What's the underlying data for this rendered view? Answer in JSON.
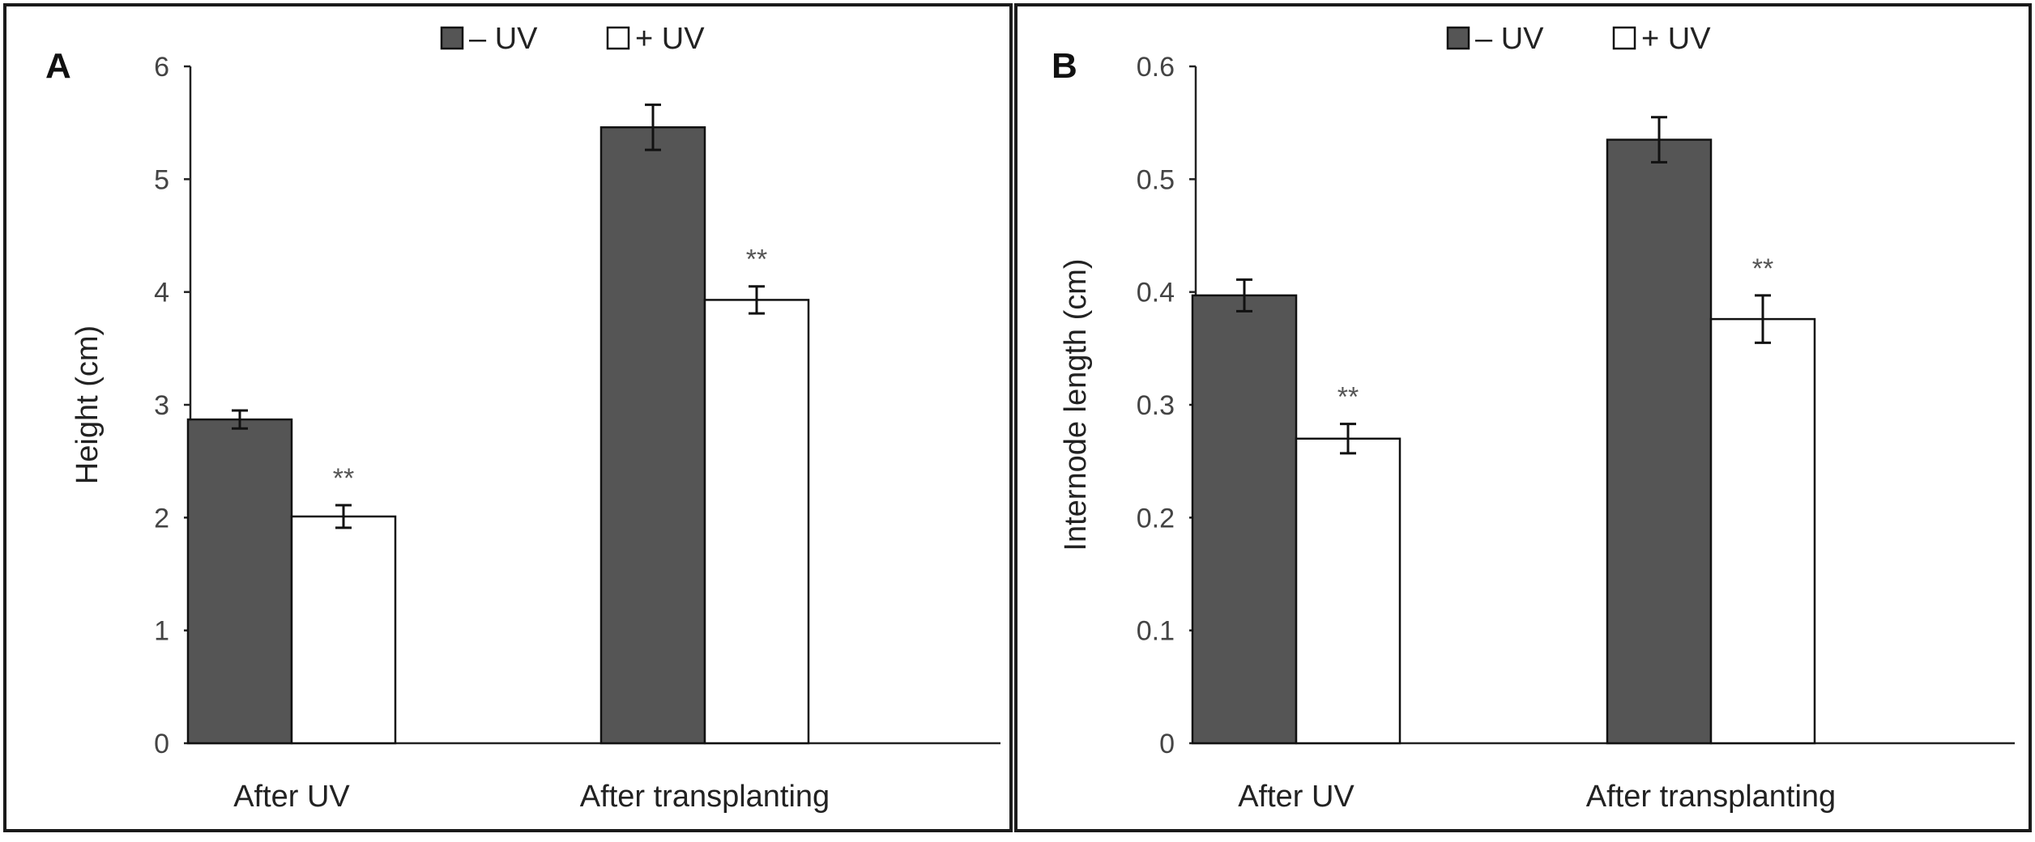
{
  "chart_data": [
    {
      "type": "bar",
      "panel_label": "A",
      "title": "",
      "xlabel": "",
      "ylabel": "Height (cm)",
      "ylim": [
        0,
        6
      ],
      "yticks": [
        0,
        1,
        2,
        3,
        4,
        5,
        6
      ],
      "grid": false,
      "legend_position": "top-center",
      "categories": [
        "After UV",
        "After transplanting"
      ],
      "series": [
        {
          "name": "– UV",
          "color": "#555555",
          "values": [
            2.87,
            5.46
          ],
          "errors": [
            0.08,
            0.2
          ]
        },
        {
          "name": "+ UV",
          "color": "#ffffff",
          "values": [
            2.01,
            3.93
          ],
          "errors": [
            0.1,
            0.12
          ]
        }
      ],
      "annotations": [
        {
          "series": 1,
          "category": 0,
          "text": "**"
        },
        {
          "series": 1,
          "category": 1,
          "text": "**"
        }
      ]
    },
    {
      "type": "bar",
      "panel_label": "B",
      "title": "",
      "xlabel": "",
      "ylabel": "Internode length (cm)",
      "ylim": [
        0,
        0.6
      ],
      "yticks": [
        0,
        0.1,
        0.2,
        0.3,
        0.4,
        0.5,
        0.6
      ],
      "grid": false,
      "legend_position": "top-center",
      "categories": [
        "After UV",
        "After transplanting"
      ],
      "series": [
        {
          "name": "– UV",
          "color": "#555555",
          "values": [
            0.397,
            0.535
          ],
          "errors": [
            0.014,
            0.02
          ]
        },
        {
          "name": "+ UV",
          "color": "#ffffff",
          "values": [
            0.27,
            0.376
          ],
          "errors": [
            0.013,
            0.021
          ]
        }
      ],
      "annotations": [
        {
          "series": 1,
          "category": 0,
          "text": "**"
        },
        {
          "series": 1,
          "category": 1,
          "text": "**"
        }
      ]
    }
  ]
}
